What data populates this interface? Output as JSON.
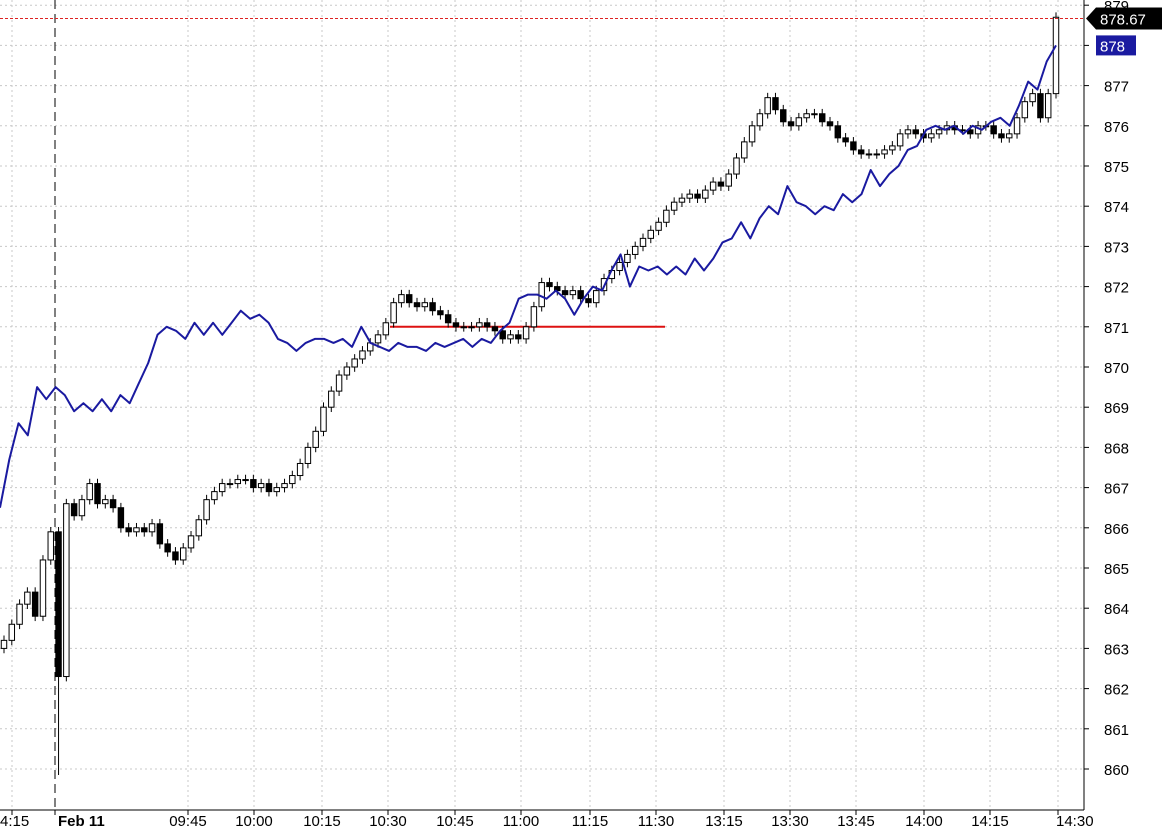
{
  "chart_data": {
    "type": "candlestick",
    "title": "",
    "xlabel": "",
    "ylabel": "",
    "ylim": [
      859.6,
      879
    ],
    "grid": true,
    "y_ticks": [
      860,
      861,
      862,
      863,
      864,
      865,
      866,
      867,
      868,
      869,
      870,
      871,
      872,
      873,
      874,
      875,
      876,
      877,
      878,
      879
    ],
    "x_ticks": [
      {
        "label": "4:15",
        "bold": false
      },
      {
        "label": "Feb 11",
        "bold": true
      },
      {
        "label": "09:45",
        "bold": false
      },
      {
        "label": "10:00",
        "bold": false
      },
      {
        "label": "10:15",
        "bold": false
      },
      {
        "label": "10:30",
        "bold": false
      },
      {
        "label": "10:45",
        "bold": false
      },
      {
        "label": "11:00",
        "bold": false
      },
      {
        "label": "11:15",
        "bold": false
      },
      {
        "label": "11:30",
        "bold": false
      },
      {
        "label": "13:15",
        "bold": false
      },
      {
        "label": "13:30",
        "bold": false
      },
      {
        "label": "13:45",
        "bold": false
      },
      {
        "label": "14:00",
        "bold": false
      },
      {
        "label": "14:15",
        "bold": false
      },
      {
        "label": "14:30",
        "bold": false
      }
    ],
    "price_series": {
      "style": "candlestick",
      "color": "#000000",
      "close": [
        863.2,
        863.6,
        864.1,
        864.4,
        863.8,
        865.2,
        865.9,
        862.3,
        866.6,
        866.3,
        866.7,
        867.1,
        866.6,
        866.7,
        866.5,
        866.0,
        865.9,
        866.0,
        865.9,
        866.1,
        865.6,
        865.4,
        865.2,
        865.5,
        865.8,
        866.2,
        866.7,
        866.9,
        867.1,
        867.1,
        867.2,
        867.2,
        867.0,
        867.1,
        866.9,
        867.0,
        867.1,
        867.3,
        867.6,
        868.0,
        868.4,
        869.0,
        869.4,
        869.8,
        870.0,
        870.2,
        870.4,
        870.6,
        870.8,
        871.1,
        871.6,
        871.8,
        871.6,
        871.5,
        871.6,
        871.4,
        871.3,
        871.1,
        871.0,
        871.0,
        871.0,
        871.1,
        871.0,
        870.9,
        870.7,
        870.8,
        870.7,
        871.0,
        871.5,
        872.1,
        872.0,
        871.9,
        871.8,
        871.9,
        871.7,
        871.6,
        871.9,
        872.2,
        872.4,
        872.6,
        872.8,
        873.0,
        873.2,
        873.4,
        873.6,
        873.9,
        874.1,
        874.2,
        874.3,
        874.2,
        874.4,
        874.6,
        874.5,
        874.8,
        875.2,
        875.6,
        876.0,
        876.3,
        876.7,
        876.4,
        876.1,
        876.0,
        876.2,
        876.3,
        876.3,
        876.1,
        876.0,
        875.7,
        875.6,
        875.4,
        875.3,
        875.3,
        875.3,
        875.4,
        875.5,
        875.8,
        875.9,
        875.8,
        875.7,
        875.8,
        875.9,
        876.0,
        875.9,
        875.9,
        875.8,
        876.0,
        876.0,
        875.8,
        875.7,
        875.8,
        876.2,
        876.6,
        876.8,
        876.2,
        876.8,
        878.7
      ]
    },
    "comparison_series": {
      "style": "line",
      "color": "#1a1aa0",
      "values": [
        866.5,
        867.7,
        868.6,
        868.3,
        869.5,
        869.2,
        869.5,
        869.3,
        868.9,
        869.1,
        868.9,
        869.2,
        868.9,
        869.3,
        869.1,
        869.6,
        870.1,
        870.8,
        871.0,
        870.9,
        870.7,
        871.1,
        870.8,
        871.1,
        870.8,
        871.1,
        871.4,
        871.2,
        871.3,
        871.1,
        870.7,
        870.6,
        870.4,
        870.6,
        870.7,
        870.7,
        870.6,
        870.7,
        870.5,
        871.0,
        870.6,
        870.5,
        870.4,
        870.6,
        870.5,
        870.5,
        870.4,
        870.6,
        870.5,
        870.6,
        870.7,
        870.5,
        870.7,
        870.6,
        870.9,
        871.1,
        871.7,
        871.8,
        871.8,
        871.7,
        871.9,
        871.7,
        871.3,
        871.7,
        872.0,
        871.9,
        872.4,
        872.8,
        872.0,
        872.5,
        872.4,
        872.5,
        872.3,
        872.5,
        872.3,
        872.7,
        872.4,
        872.7,
        873.1,
        873.2,
        873.6,
        873.2,
        873.7,
        874.0,
        873.8,
        874.5,
        874.1,
        874.0,
        873.8,
        874.0,
        873.9,
        874.3,
        874.1,
        874.3,
        874.9,
        874.5,
        874.8,
        875.0,
        875.4,
        875.5,
        875.9,
        876.0,
        875.9,
        876.0,
        875.8,
        876.0,
        875.9,
        876.1,
        876.2,
        876.0,
        876.5,
        877.1,
        876.9,
        877.6,
        878.0
      ]
    },
    "reference_line": {
      "value": 871.0,
      "color": "#dd1111"
    },
    "last_price": {
      "value": 878.67,
      "label": "878.67",
      "line_color": "#dd2222",
      "tag_color": "#000000"
    },
    "comparison_last": {
      "value": 878,
      "label": "878",
      "tag_color": "#1a1aa0"
    }
  }
}
